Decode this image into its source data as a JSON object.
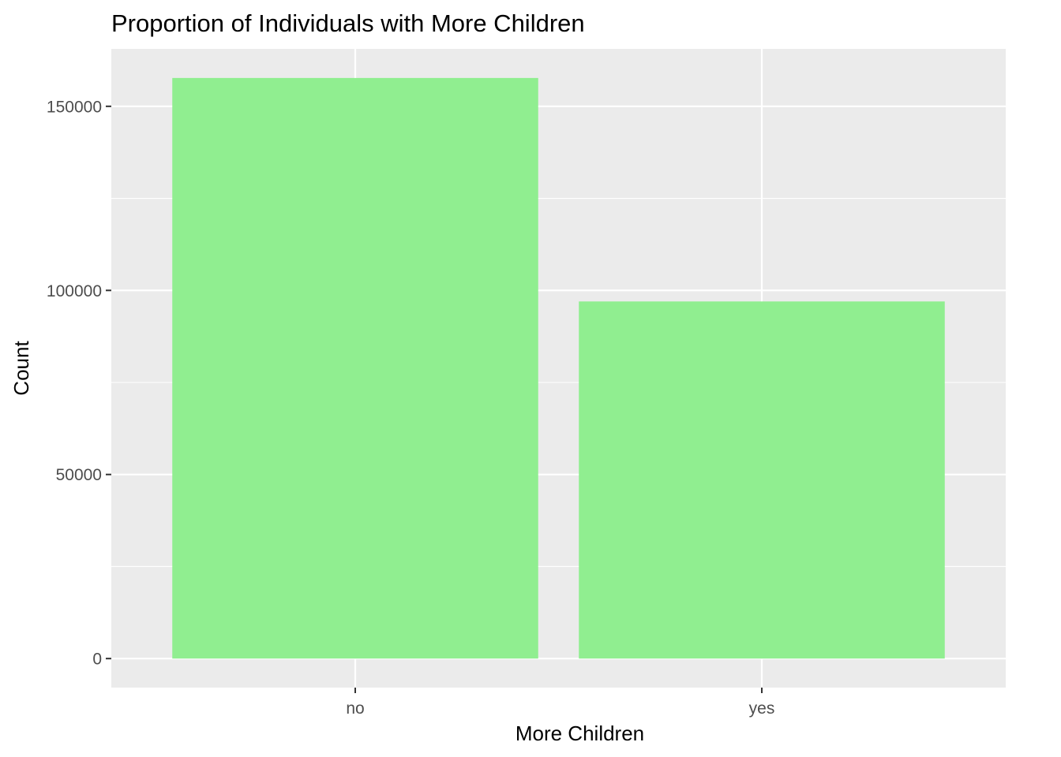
{
  "chart_data": {
    "type": "bar",
    "title": "Proportion of Individuals with More Children",
    "xlabel": "More Children",
    "ylabel": "Count",
    "categories": [
      "no",
      "yes"
    ],
    "values": [
      157700,
      97000
    ],
    "ylim": [
      -7890,
      165600
    ],
    "yticks": [
      0,
      50000,
      100000,
      150000
    ],
    "ytick_labels": [
      "0",
      "50000",
      "100000",
      "150000"
    ],
    "grid": true,
    "colors": {
      "bar": "#90EE90",
      "panel": "#EBEBEB",
      "grid": "#FFFFFF",
      "tick_text": "#4D4D4D",
      "tick_mark": "#333333"
    }
  }
}
